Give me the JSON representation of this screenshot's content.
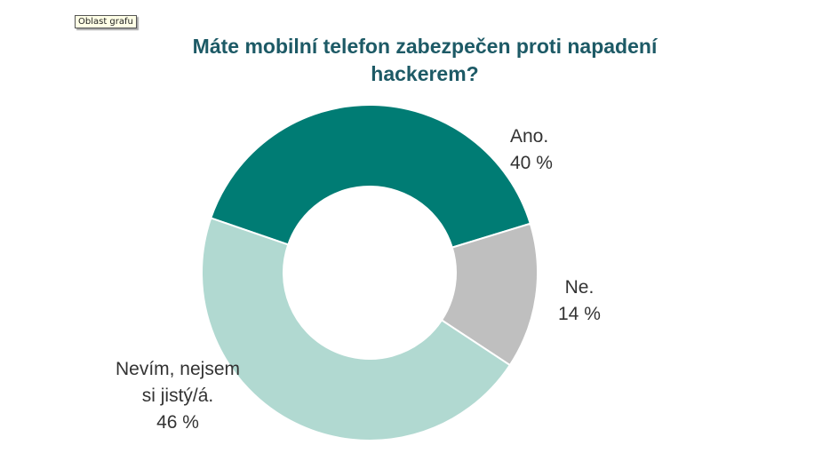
{
  "tooltip": "Oblast grafu",
  "chart_data": {
    "type": "pie",
    "title": "Máte mobilní telefon zabezpečen proti napadení hackerem?",
    "donut": true,
    "slices": [
      {
        "category": "Ano.",
        "value": 40,
        "value_label": "40 %",
        "color": "#007c74"
      },
      {
        "category": "Ne.",
        "value": 14,
        "value_label": "14 %",
        "color": "#bfbfbf"
      },
      {
        "category": "Nevím, nejsem si jistý/á.",
        "category_lines": [
          "Nevím, nejsem",
          "si jistý/á."
        ],
        "value": 46,
        "value_label": "46 %",
        "color": "#b1d9d1"
      }
    ]
  }
}
